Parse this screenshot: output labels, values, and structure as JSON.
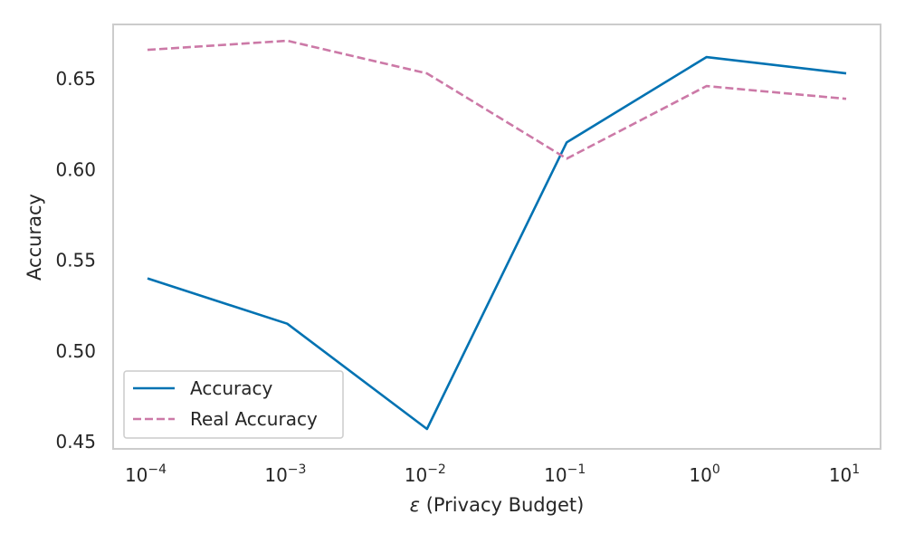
{
  "chart_data": {
    "type": "line",
    "x_scale": "log",
    "x": [
      0.0001,
      0.001,
      0.01,
      0.1,
      1,
      10
    ],
    "x_tick_labels": [
      {
        "base": "10",
        "exp": "−4"
      },
      {
        "base": "10",
        "exp": "−3"
      },
      {
        "base": "10",
        "exp": "−2"
      },
      {
        "base": "10",
        "exp": "−1"
      },
      {
        "base": "10",
        "exp": "0"
      },
      {
        "base": "10",
        "exp": "1"
      }
    ],
    "y_ticks": [
      0.45,
      0.5,
      0.55,
      0.6,
      0.65
    ],
    "y_tick_labels": [
      "0.45",
      "0.50",
      "0.55",
      "0.60",
      "0.65"
    ],
    "ylim": [
      0.446,
      0.68
    ],
    "xlabel_symbol": "ε",
    "xlabel_text": " (Privacy Budget)",
    "ylabel": "Accuracy",
    "grid": false,
    "legend_position": "lower left",
    "series": [
      {
        "name": "Accuracy",
        "values": [
          0.54,
          0.515,
          0.457,
          0.615,
          0.662,
          0.653
        ],
        "color": "#0072b2",
        "style": "solid"
      },
      {
        "name": "Real Accuracy",
        "values": [
          0.666,
          0.671,
          0.653,
          0.606,
          0.646,
          0.639
        ],
        "color": "#cc79a7",
        "style": "dashed"
      }
    ]
  }
}
